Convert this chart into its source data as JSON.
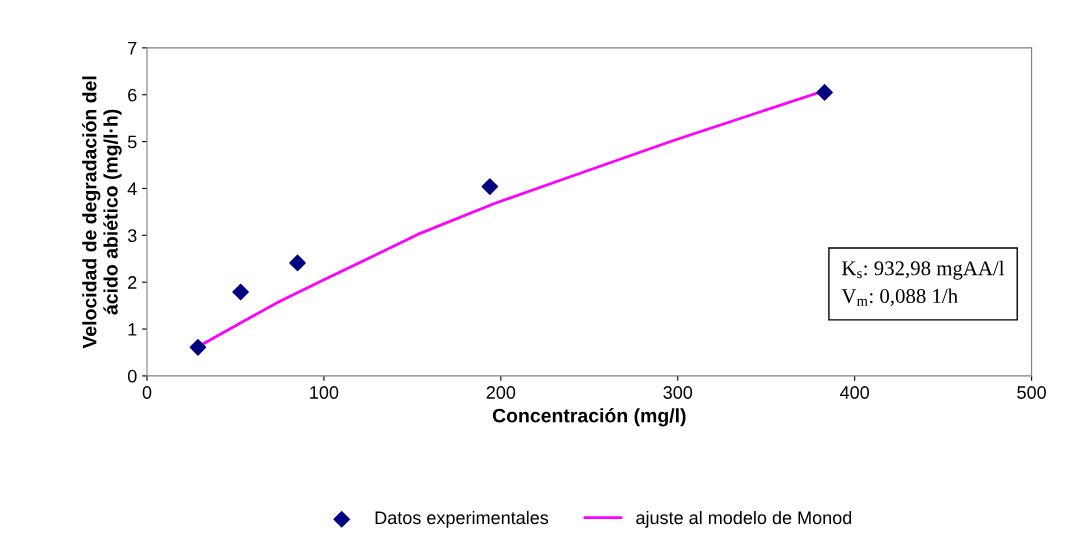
{
  "chart_data": {
    "type": "scatter",
    "xlabel": "Concentración (mg/l)",
    "ylabel": "Velocidad de degradación del\nácido abiético (mg/l·h)",
    "xlim": [
      0,
      500
    ],
    "xticks": [
      0,
      100,
      200,
      300,
      400,
      500
    ],
    "ylim": [
      0,
      7
    ],
    "yticks": [
      0,
      1,
      2,
      3,
      4,
      5,
      6,
      7
    ],
    "grid": false,
    "legend": "bottom",
    "series": [
      {
        "name": "Datos experimentales",
        "marker": "diamond",
        "color": "#000080",
        "x": [
          28.8,
          52.9,
          85.1,
          193.8,
          383
        ],
        "values": [
          0.61,
          1.79,
          2.41,
          4.04,
          6.05
        ]
      },
      {
        "name": "ajuste al modelo de Monod",
        "type": "line",
        "marker": "none",
        "color": "#ff00ff",
        "x": [
          31.6,
          53.3,
          74,
          100,
          128.6,
          153,
          196.4,
          234,
          298,
          380
        ],
        "values": [
          0.68,
          1.14,
          1.57,
          2.05,
          2.57,
          3.02,
          3.68,
          4.18,
          5.03,
          6.05
        ]
      }
    ],
    "annotations": [
      "K$_{s}$: 932,98 mgAA/l\nV$_{m}$: 0,088 1/h"
    ]
  }
}
